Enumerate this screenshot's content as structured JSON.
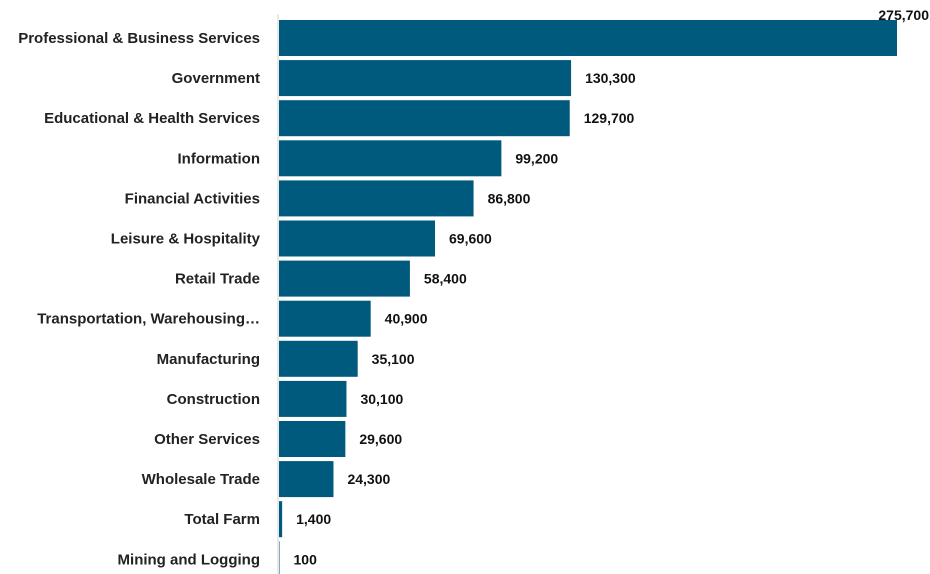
{
  "chart_data": {
    "type": "bar",
    "orientation": "horizontal",
    "categories": [
      "Professional & Business Services",
      "Government",
      "Educational & Health Services",
      "Information",
      "Financial Activities",
      "Leisure & Hospitality",
      "Retail Trade",
      "Transportation, Warehousing…",
      "Manufacturing",
      "Construction",
      "Other Services",
      "Wholesale Trade",
      "Total Farm",
      "Mining and Logging"
    ],
    "values": [
      275700,
      130300,
      129700,
      99200,
      86800,
      69600,
      58400,
      40900,
      35100,
      30100,
      29600,
      24300,
      1400,
      100
    ],
    "value_labels": [
      "275,700",
      "130,300",
      "129,700",
      "99,200",
      "86,800",
      "69,600",
      "58,400",
      "40,900",
      "35,100",
      "30,100",
      "29,600",
      "24,300",
      "1,400",
      "100"
    ],
    "title": "",
    "xlabel": "",
    "ylabel": "",
    "xlim": [
      0,
      275700
    ],
    "grid": false,
    "legend": "none",
    "bar_color": "#005a7e"
  }
}
